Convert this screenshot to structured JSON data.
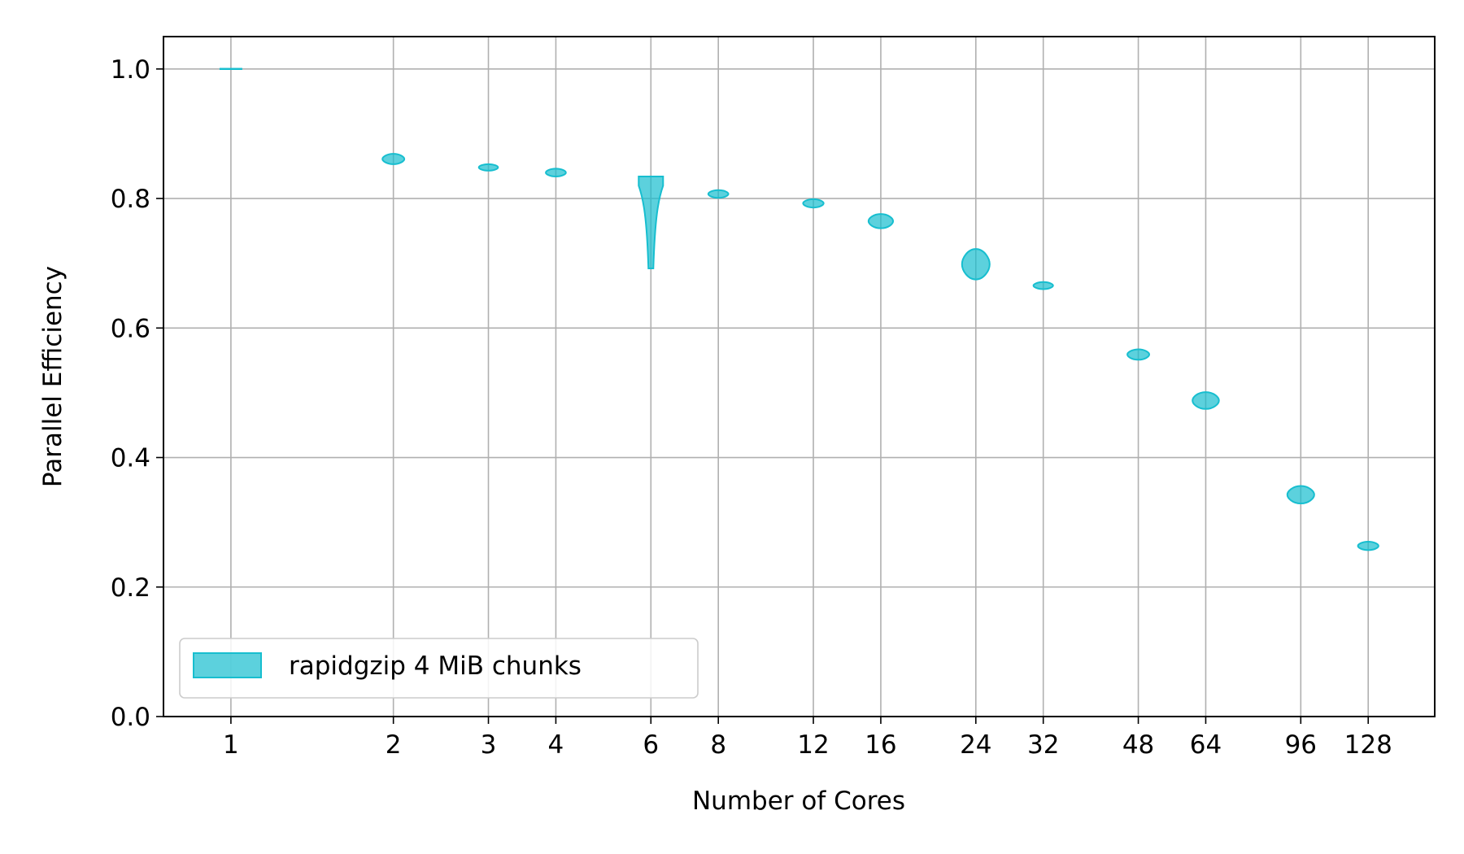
{
  "chart_data": {
    "type": "violin",
    "title": "",
    "xlabel": "Number of Cores",
    "ylabel": "Parallel Efficiency",
    "x_scale": "log2",
    "x_ticks": [
      1,
      2,
      3,
      4,
      6,
      8,
      12,
      16,
      24,
      32,
      48,
      64,
      96,
      128
    ],
    "x_tick_labels": [
      "1",
      "2",
      "3",
      "4",
      "6",
      "8",
      "12",
      "16",
      "24",
      "32",
      "48",
      "64",
      "96",
      "128"
    ],
    "y_ticks": [
      0.0,
      0.2,
      0.4,
      0.6,
      0.8,
      1.0
    ],
    "y_tick_labels": [
      "0.0",
      "0.2",
      "0.4",
      "0.6",
      "0.8",
      "1.0"
    ],
    "ylim": [
      0.0,
      1.05
    ],
    "grid": true,
    "legend_position": "lower-left",
    "series": [
      {
        "name": "rapidgzip 4 MiB chunks",
        "color": "#17becf",
        "points": [
          {
            "x": 1,
            "min": 1.0,
            "max": 1.0
          },
          {
            "x": 2,
            "min": 0.853,
            "max": 0.869
          },
          {
            "x": 3,
            "min": 0.843,
            "max": 0.853
          },
          {
            "x": 4,
            "min": 0.834,
            "max": 0.846
          },
          {
            "x": 6,
            "min": 0.692,
            "max": 0.834
          },
          {
            "x": 8,
            "min": 0.801,
            "max": 0.813
          },
          {
            "x": 12,
            "min": 0.786,
            "max": 0.799
          },
          {
            "x": 16,
            "min": 0.754,
            "max": 0.776
          },
          {
            "x": 24,
            "min": 0.675,
            "max": 0.722
          },
          {
            "x": 32,
            "min": 0.66,
            "max": 0.671
          },
          {
            "x": 48,
            "min": 0.551,
            "max": 0.567
          },
          {
            "x": 64,
            "min": 0.475,
            "max": 0.501
          },
          {
            "x": 96,
            "min": 0.329,
            "max": 0.356
          },
          {
            "x": 128,
            "min": 0.257,
            "max": 0.27
          }
        ]
      }
    ]
  }
}
